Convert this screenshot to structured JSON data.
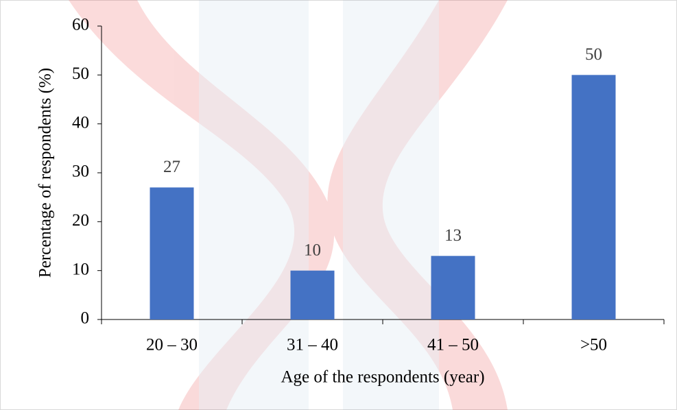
{
  "chart_data": {
    "type": "bar",
    "x_label": "Age of the respondents (year)",
    "y_label": "Percentage of respondents (%)",
    "categories": [
      "20 – 30",
      "31 – 40",
      "41 – 50",
      ">50"
    ],
    "values": [
      27,
      10,
      13,
      50
    ],
    "color": "#4472c4",
    "ylim": [
      0,
      60
    ],
    "yticks": [
      0,
      10,
      20,
      30,
      40,
      50,
      60
    ]
  }
}
